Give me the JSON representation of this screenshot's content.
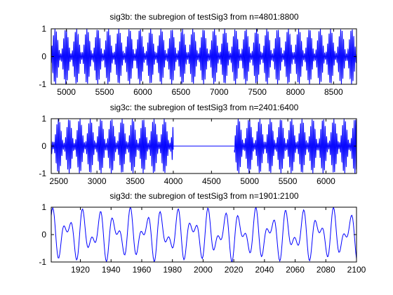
{
  "chart_data": [
    {
      "type": "line",
      "title": "sig3b: the subregion of testSig3 from n=4801:8800",
      "xlim": [
        4801,
        8800
      ],
      "ylim": [
        -1,
        1
      ],
      "xticks": [
        5000,
        5500,
        6000,
        6500,
        7000,
        7500,
        8000,
        8500
      ],
      "yticks": [
        -1,
        0,
        1
      ],
      "line_color": "#0000ff",
      "segments": [
        {
          "kind": "dense",
          "x": [
            4801,
            8800
          ],
          "amplitude": 1,
          "period": 19
        }
      ]
    },
    {
      "type": "line",
      "title": "sig3c: the subregion of testSig3 from n=2401:6400",
      "xlim": [
        2401,
        6400
      ],
      "ylim": [
        -1,
        1
      ],
      "xticks": [
        2500,
        3000,
        3500,
        4000,
        4500,
        5000,
        5500,
        6000
      ],
      "yticks": [
        -1,
        0,
        1
      ],
      "line_color": "#0000ff",
      "segments": [
        {
          "kind": "dense",
          "x": [
            2401,
            4000
          ],
          "amplitude": 1,
          "period": 19
        },
        {
          "kind": "flat",
          "x": [
            4000,
            4800
          ],
          "value": 0
        },
        {
          "kind": "dense",
          "x": [
            4800,
            6400
          ],
          "amplitude": 1,
          "period": 19
        }
      ]
    },
    {
      "type": "line",
      "title": "sig3d: the subregion of testSig3 from n=1901:2100",
      "xlim": [
        1901,
        2100
      ],
      "ylim": [
        -1,
        1
      ],
      "xticks": [
        1920,
        1940,
        1960,
        1980,
        2000,
        2020,
        2040,
        2060,
        2080,
        2100
      ],
      "yticks": [
        -1,
        0,
        1
      ],
      "line_color": "#0000ff",
      "segments": [
        {
          "kind": "wave",
          "x": [
            1901,
            2100
          ],
          "components": [
            {
              "amplitude": 0.55,
              "period": 10.2,
              "phase": 1.2
            },
            {
              "amplitude": 0.45,
              "period": 6.3,
              "phase": 0.4
            }
          ]
        }
      ]
    }
  ]
}
